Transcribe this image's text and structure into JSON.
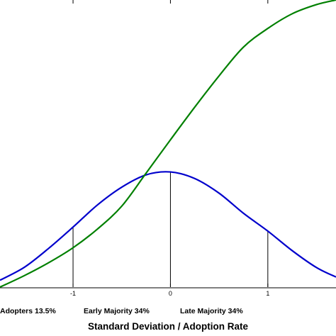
{
  "chart_data": {
    "type": "line",
    "xlabel": "Standard Deviation / Adoption Rate",
    "ylabel": "",
    "xlim": [
      -1.75,
      1.7
    ],
    "ylim": [
      0,
      1
    ],
    "x_ticks": [
      "-1",
      "0",
      "1"
    ],
    "x_tick_values": [
      -1,
      0,
      1
    ],
    "category_labels": [
      "Adopters 13.5%",
      "Early Majority 34%",
      "Late Majority 34%"
    ],
    "series": [
      {
        "color": "#0000cc",
        "x": [
          -1.75,
          -1.5,
          -1.25,
          -1.0,
          -0.75,
          -0.5,
          -0.25,
          0.0,
          0.25,
          0.5,
          0.75,
          1.0,
          1.25,
          1.5,
          1.7
        ],
        "y": [
          0.024,
          0.069,
          0.135,
          0.209,
          0.286,
          0.348,
          0.391,
          0.401,
          0.378,
          0.327,
          0.257,
          0.195,
          0.127,
          0.068,
          0.035
        ]
      },
      {
        "color": "#008000",
        "x": [
          -1.75,
          -1.5,
          -1.25,
          -1.0,
          -0.75,
          -0.5,
          -0.25,
          0.0,
          0.25,
          0.5,
          0.75,
          1.0,
          1.25,
          1.5,
          1.7
        ],
        "y": [
          0.0,
          0.04,
          0.085,
          0.137,
          0.202,
          0.282,
          0.397,
          0.513,
          0.627,
          0.736,
          0.836,
          0.901,
          0.952,
          0.984,
          1.0
        ]
      }
    ],
    "guide_lines_at": [
      -1,
      0,
      1
    ],
    "grid": false,
    "legend": "none"
  }
}
